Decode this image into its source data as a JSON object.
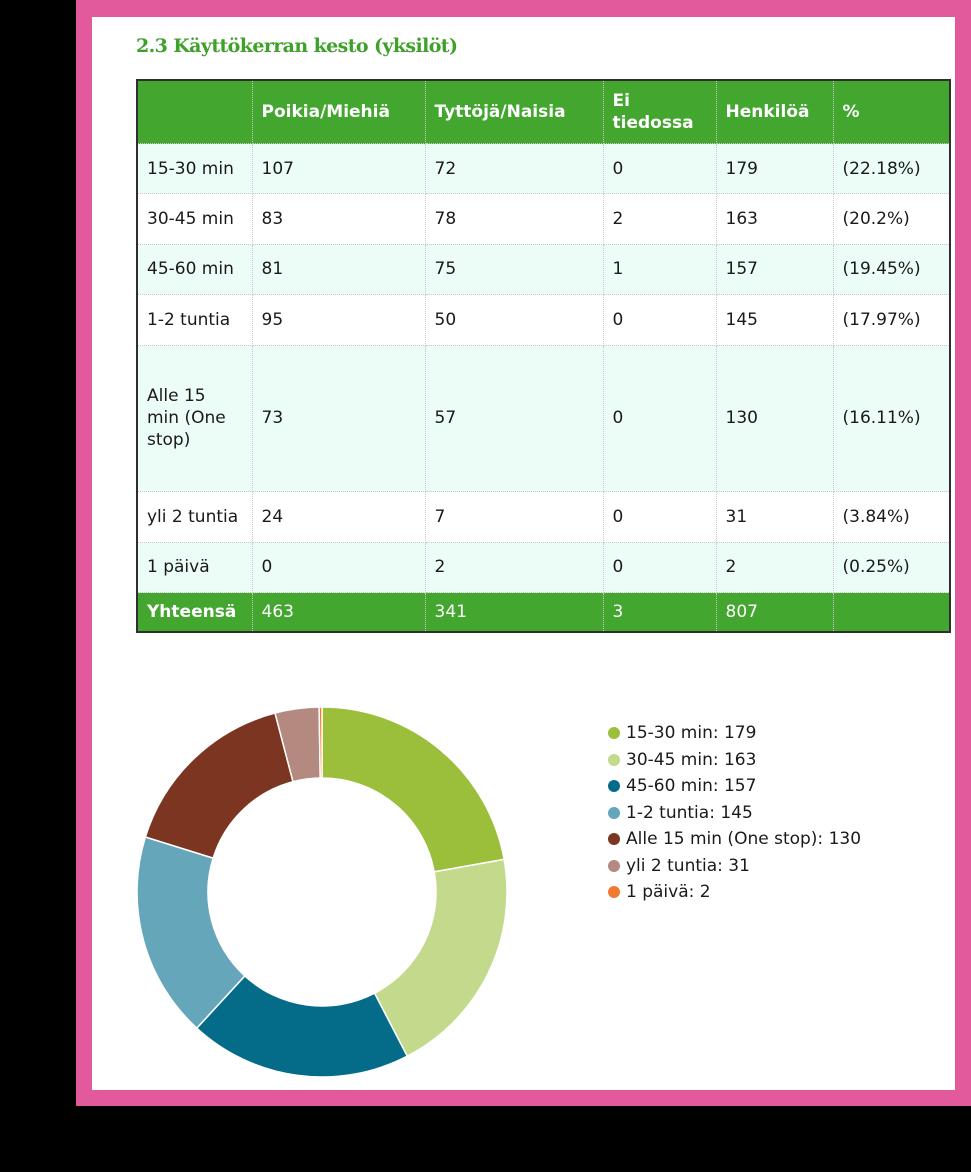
{
  "title": "2.3 Käyttökerran kesto (yksilöt)",
  "table": {
    "headers": [
      "",
      "Poikia/Miehiä",
      "Tyttöjä/Naisia",
      "Ei tiedossa",
      "Henkilöä",
      "%"
    ],
    "rows": [
      [
        "15-30 min",
        "107",
        "72",
        "0",
        "179",
        "(22.18%)"
      ],
      [
        "30-45 min",
        "83",
        "78",
        "2",
        "163",
        "(20.2%)"
      ],
      [
        "45-60 min",
        "81",
        "75",
        "1",
        "157",
        "(19.45%)"
      ],
      [
        "1-2 tuntia",
        "95",
        "50",
        "0",
        "145",
        "(17.97%)"
      ],
      [
        "Alle 15 min (One stop)",
        "73",
        "57",
        "0",
        "130",
        "(16.11%)"
      ],
      [
        "yli 2 tuntia",
        "24",
        "7",
        "0",
        "31",
        "(3.84%)"
      ],
      [
        "1 päivä",
        "0",
        "2",
        "0",
        "2",
        "(0.25%)"
      ]
    ],
    "total": [
      "Yhteensä",
      "463",
      "341",
      "3",
      "807",
      ""
    ]
  },
  "chart_data": {
    "type": "pie",
    "style": "donut",
    "legend_position": "right",
    "slices": [
      {
        "label": "15-30 min",
        "value": 179,
        "legend": "15-30 min: 179",
        "color": "#9bbe3b"
      },
      {
        "label": "30-45 min",
        "value": 163,
        "legend": "30-45 min: 163",
        "color": "#c3da8c"
      },
      {
        "label": "45-60 min",
        "value": 157,
        "legend": "45-60 min: 157",
        "color": "#046b89"
      },
      {
        "label": "1-2 tuntia",
        "value": 145,
        "legend": "1-2 tuntia: 145",
        "color": "#65a6bb"
      },
      {
        "label": "Alle 15 min (One stop)",
        "value": 130,
        "legend": "Alle 15 min (One stop): 130",
        "color": "#7b3520"
      },
      {
        "label": "yli 2 tuntia",
        "value": 31,
        "legend": "yli 2 tuntia: 31",
        "color": "#b48a80"
      },
      {
        "label": "1 päivä",
        "value": 2,
        "legend": "1 päivä: 2",
        "color": "#f07a32"
      }
    ]
  }
}
